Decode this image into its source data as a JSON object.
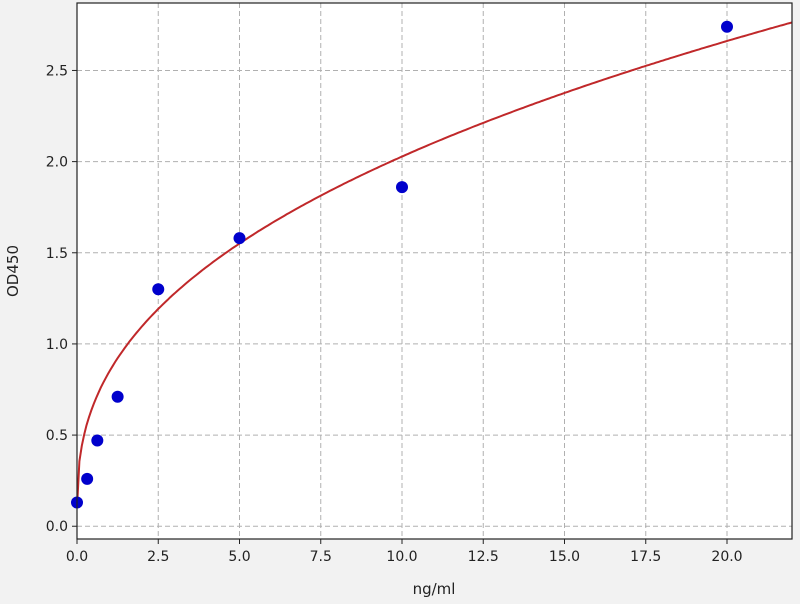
{
  "chart_data": {
    "type": "scatter",
    "title": "",
    "xlabel": "ng/ml",
    "ylabel": "OD450",
    "xlim": [
      0,
      22
    ],
    "ylim": [
      -0.07,
      2.87
    ],
    "xticks": [
      "0.0",
      "2.5",
      "5.0",
      "7.5",
      "10.0",
      "12.5",
      "15.0",
      "17.5",
      "20.0"
    ],
    "yticks": [
      "0.0",
      "0.5",
      "1.0",
      "1.5",
      "2.0",
      "2.5"
    ],
    "grid": true,
    "series": [
      {
        "kind": "points",
        "color": "#0000cc",
        "x": [
          0,
          0.3125,
          0.625,
          1.25,
          2.5,
          5,
          10,
          20
        ],
        "y": [
          0.13,
          0.26,
          0.47,
          0.71,
          1.3,
          1.58,
          1.86,
          2.74
        ]
      },
      {
        "kind": "fit-curve",
        "color": "#c0282a"
      }
    ]
  }
}
